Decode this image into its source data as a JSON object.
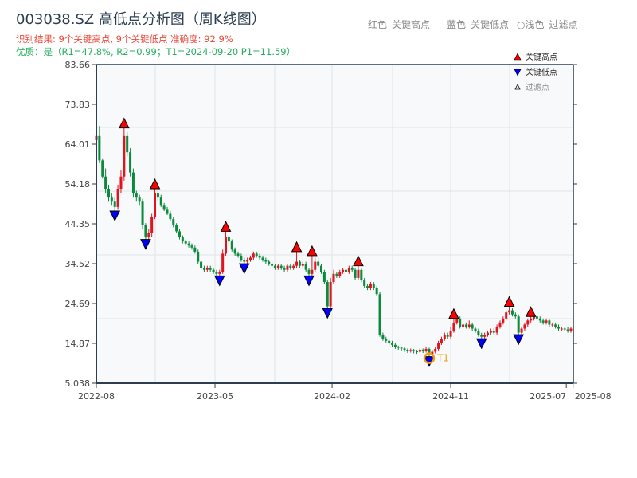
{
  "header": {
    "title": "003038.SZ 高低点分析图（周K线图）",
    "result": "识别结果: 9个关键高点, 9个关键低点   准确度: 92.9%",
    "quality": "优质：是（R1=47.8%, R2=0.99；T1=2024-09-20 P1=11.59）",
    "hint_red": "红色–关键高点",
    "hint_blue": "蓝色–关键低点",
    "hint_light": "○浅色–过滤点"
  },
  "chart_data": {
    "type": "candlestick",
    "ylim": [
      5.038,
      83.66
    ],
    "yticks": [
      "5.038",
      "14.87",
      "24.69",
      "34.52",
      "44.35",
      "54.18",
      "64.01",
      "73.83",
      "83.66"
    ],
    "xticks": [
      {
        "label": "2022-08",
        "index": 0
      },
      {
        "label": "2023-05",
        "index": 38.5
      },
      {
        "label": "2024-02",
        "index": 76.5
      },
      {
        "label": "2024-11",
        "index": 115
      },
      {
        "label": "2025-07",
        "index": 152.5
      },
      {
        "label": "2025-08",
        "index": 154.7
      }
    ],
    "grid": true,
    "colors": {
      "up": "#e0141e",
      "down": "#0a8a3a",
      "high_marker": "#ff0000",
      "low_marker": "#0000ff",
      "t1": "#f39c12",
      "axis": "#2c3e50",
      "plot_bg": "#f7f9fb"
    },
    "legend": {
      "position": "top-right",
      "items": [
        {
          "label": "关键高点",
          "marker": "triangle-up",
          "color": "#ff0000"
        },
        {
          "label": "关键低点",
          "marker": "triangle-down",
          "color": "#0000ff"
        },
        {
          "label": "过滤点",
          "marker": "triangle-up-outline",
          "color": "#888888"
        }
      ]
    },
    "candles_format": "open, close, low, high",
    "candles": [
      [
        65,
        66,
        64.5,
        68.5
      ],
      [
        66,
        60,
        59.5,
        68.5
      ],
      [
        60,
        56,
        55.5,
        60.5
      ],
      [
        56,
        53,
        52,
        58
      ],
      [
        53,
        51,
        50,
        54
      ],
      [
        51,
        50,
        49,
        52
      ],
      [
        50,
        48.5,
        47.5,
        51
      ],
      [
        48.5,
        53,
        48,
        54
      ],
      [
        53,
        56,
        52,
        57.5
      ],
      [
        56,
        66,
        55,
        68
      ],
      [
        66,
        62,
        61,
        67
      ],
      [
        62,
        57,
        56,
        63
      ],
      [
        57,
        52,
        51,
        58
      ],
      [
        52,
        51,
        50,
        52.5
      ],
      [
        51,
        50,
        49,
        51.5
      ],
      [
        50,
        44,
        43,
        50.5
      ],
      [
        44,
        41,
        40.5,
        44.5
      ],
      [
        41,
        42,
        40,
        43
      ],
      [
        42,
        46,
        41,
        47
      ],
      [
        46,
        52,
        45.5,
        53
      ],
      [
        52,
        51,
        50,
        53
      ],
      [
        51,
        49,
        48.5,
        51.5
      ],
      [
        49,
        48,
        47.5,
        49.5
      ],
      [
        48,
        47,
        46.5,
        48.5
      ],
      [
        47,
        45.5,
        45,
        47.5
      ],
      [
        45.5,
        44,
        43.5,
        46
      ],
      [
        44,
        42.5,
        42,
        44.5
      ],
      [
        42.5,
        41,
        40.5,
        43
      ],
      [
        41,
        40,
        39.5,
        41.5
      ],
      [
        40,
        39.5,
        39,
        40.5
      ],
      [
        39.5,
        39,
        38.5,
        40
      ],
      [
        39,
        38.5,
        38,
        39.5
      ],
      [
        38.5,
        37.5,
        37,
        39
      ],
      [
        37.5,
        35,
        34.5,
        38
      ],
      [
        35,
        33.5,
        33,
        35.5
      ],
      [
        33.5,
        33,
        32.5,
        34
      ],
      [
        33,
        33.5,
        32.5,
        34
      ],
      [
        33.5,
        33,
        32.5,
        34
      ],
      [
        33,
        32.5,
        32,
        33.5
      ],
      [
        32.5,
        32,
        31.5,
        33
      ],
      [
        32,
        32.5,
        31.5,
        33
      ],
      [
        32.5,
        37,
        32,
        38
      ],
      [
        37,
        41,
        36.5,
        42.5
      ],
      [
        41,
        40,
        39.5,
        41.5
      ],
      [
        40,
        38,
        37.5,
        40.5
      ],
      [
        38,
        37,
        36.5,
        38.5
      ],
      [
        37,
        36.5,
        36,
        37.5
      ],
      [
        36.5,
        35.5,
        35,
        37
      ],
      [
        35.5,
        35,
        34.5,
        36
      ],
      [
        35,
        35.5,
        34.5,
        36
      ],
      [
        35.5,
        36,
        35,
        36.5
      ],
      [
        36,
        37,
        35.5,
        37.5
      ],
      [
        37,
        36.5,
        36,
        37.5
      ],
      [
        36.5,
        36,
        35.5,
        37
      ],
      [
        36,
        35.5,
        35,
        36.5
      ],
      [
        35.5,
        35,
        34.5,
        36
      ],
      [
        35,
        34.5,
        34,
        35.5
      ],
      [
        34.5,
        34,
        33.5,
        35
      ],
      [
        34,
        33.5,
        33,
        34.5
      ],
      [
        33.5,
        34,
        33,
        34.5
      ],
      [
        34,
        33.5,
        33,
        34.5
      ],
      [
        33.5,
        33,
        32.5,
        34
      ],
      [
        33,
        34,
        32.5,
        34.5
      ],
      [
        34,
        33.5,
        33,
        34.5
      ],
      [
        33.5,
        34,
        33,
        34.5
      ],
      [
        34,
        35,
        33.5,
        37.5
      ],
      [
        35,
        34,
        33.5,
        35.5
      ],
      [
        34,
        34.5,
        33.5,
        35
      ],
      [
        34.5,
        33,
        32.5,
        35
      ],
      [
        33,
        32,
        31.5,
        33.5
      ],
      [
        32,
        33,
        31.5,
        36.5
      ],
      [
        33,
        35,
        32.5,
        36
      ],
      [
        35,
        34,
        33.5,
        36
      ],
      [
        34,
        32.5,
        32,
        34.5
      ],
      [
        32.5,
        30,
        29.5,
        33
      ],
      [
        30,
        24,
        23.5,
        30.5
      ],
      [
        24,
        30,
        23.5,
        31
      ],
      [
        30,
        32,
        29.5,
        33
      ],
      [
        32,
        31.5,
        31,
        32.5
      ],
      [
        31.5,
        32.5,
        31,
        33
      ],
      [
        32.5,
        33,
        32,
        33.5
      ],
      [
        33,
        32.5,
        32,
        33.5
      ],
      [
        32.5,
        33.5,
        32,
        34
      ],
      [
        33.5,
        33,
        32.5,
        34
      ],
      [
        33,
        31,
        30.5,
        33.5
      ],
      [
        31,
        33,
        30.5,
        34
      ],
      [
        33,
        30.5,
        30,
        33.5
      ],
      [
        30.5,
        29,
        28.5,
        31
      ],
      [
        29,
        28.5,
        28,
        29.5
      ],
      [
        28.5,
        29.5,
        28,
        30
      ],
      [
        29.5,
        28.5,
        28,
        30
      ],
      [
        28.5,
        27,
        26.5,
        29
      ],
      [
        27,
        17,
        16.5,
        27.5
      ],
      [
        17,
        16,
        15.5,
        17.5
      ],
      [
        16,
        15.5,
        15,
        16.5
      ],
      [
        15.5,
        15,
        14.5,
        16
      ],
      [
        15,
        14.5,
        14,
        15.5
      ],
      [
        14.5,
        14,
        13.5,
        15
      ],
      [
        14,
        13.8,
        13.3,
        14.3
      ],
      [
        13.8,
        13.6,
        13.1,
        14.1
      ],
      [
        13.6,
        13.3,
        12.8,
        14
      ],
      [
        13.3,
        13,
        12.5,
        13.6
      ],
      [
        13,
        13.2,
        12.6,
        13.6
      ],
      [
        13.2,
        12.9,
        12.4,
        13.5
      ],
      [
        12.9,
        12.8,
        12.3,
        13.3
      ],
      [
        12.8,
        13.3,
        12.5,
        13.7
      ],
      [
        13.3,
        13,
        12.5,
        13.6
      ],
      [
        13,
        13.5,
        12.6,
        13.9
      ],
      [
        13.5,
        12.2,
        11.59,
        13.8
      ],
      [
        12.2,
        12.8,
        11.8,
        13.3
      ],
      [
        12.8,
        13.5,
        12.4,
        14
      ],
      [
        13.5,
        15,
        13,
        15.5
      ],
      [
        15,
        16,
        14.5,
        16.5
      ],
      [
        16,
        17,
        15.5,
        17.5
      ],
      [
        17,
        16.5,
        16,
        17.5
      ],
      [
        16.5,
        18,
        16,
        19
      ],
      [
        18,
        20,
        17.5,
        21
      ],
      [
        20,
        21,
        19.5,
        22
      ],
      [
        21,
        19,
        18.5,
        21.5
      ],
      [
        19,
        19.5,
        18.5,
        20
      ],
      [
        19.5,
        19,
        18.5,
        20
      ],
      [
        19,
        19.5,
        18.5,
        20.5
      ],
      [
        19.5,
        18.5,
        18,
        20
      ],
      [
        18.5,
        18,
        17.5,
        19
      ],
      [
        18,
        17,
        16.5,
        18.5
      ],
      [
        17,
        16.5,
        16,
        17.5
      ],
      [
        16.5,
        17,
        16,
        17.5
      ],
      [
        17,
        17.5,
        16.5,
        18
      ],
      [
        17.5,
        18,
        17,
        18.5
      ],
      [
        18,
        17.5,
        17,
        18.5
      ],
      [
        17.5,
        19,
        17,
        19.5
      ],
      [
        19,
        20,
        18.5,
        20.5
      ],
      [
        20,
        21,
        19.5,
        21.5
      ],
      [
        21,
        22.5,
        20.5,
        23
      ],
      [
        22.5,
        23,
        22,
        24
      ],
      [
        23,
        22,
        21.5,
        23.5
      ],
      [
        22,
        21.5,
        21,
        22.5
      ],
      [
        21.5,
        17.5,
        17,
        22
      ],
      [
        17.5,
        18.5,
        17,
        19
      ],
      [
        18.5,
        19.5,
        18,
        20
      ],
      [
        19.5,
        20.5,
        19,
        21
      ],
      [
        20.5,
        21,
        20,
        21.5
      ],
      [
        21,
        21.5,
        20.5,
        22
      ],
      [
        21.5,
        21,
        20.5,
        22
      ],
      [
        21,
        20.5,
        20,
        21.5
      ],
      [
        20.5,
        20,
        19.5,
        21
      ],
      [
        20,
        20.5,
        19.5,
        21
      ],
      [
        20.5,
        19.5,
        19,
        21
      ],
      [
        19.5,
        19.5,
        19,
        20
      ],
      [
        19.5,
        19,
        18.5,
        20
      ],
      [
        19,
        18.5,
        18,
        19.5
      ],
      [
        18.5,
        18.5,
        18,
        19
      ],
      [
        18.5,
        18.3,
        17.8,
        18.8
      ],
      [
        18.3,
        18,
        17.5,
        18.8
      ],
      [
        18,
        18.5,
        17.5,
        19
      ]
    ],
    "key_highs": [
      9,
      19,
      42,
      65,
      70,
      85,
      116,
      134,
      141
    ],
    "key_lows": [
      6,
      16,
      40,
      48,
      69,
      75,
      108,
      125,
      137
    ],
    "t1": {
      "label": "T1",
      "index": 108,
      "date": "2024-09-20",
      "price": 11.59
    }
  }
}
